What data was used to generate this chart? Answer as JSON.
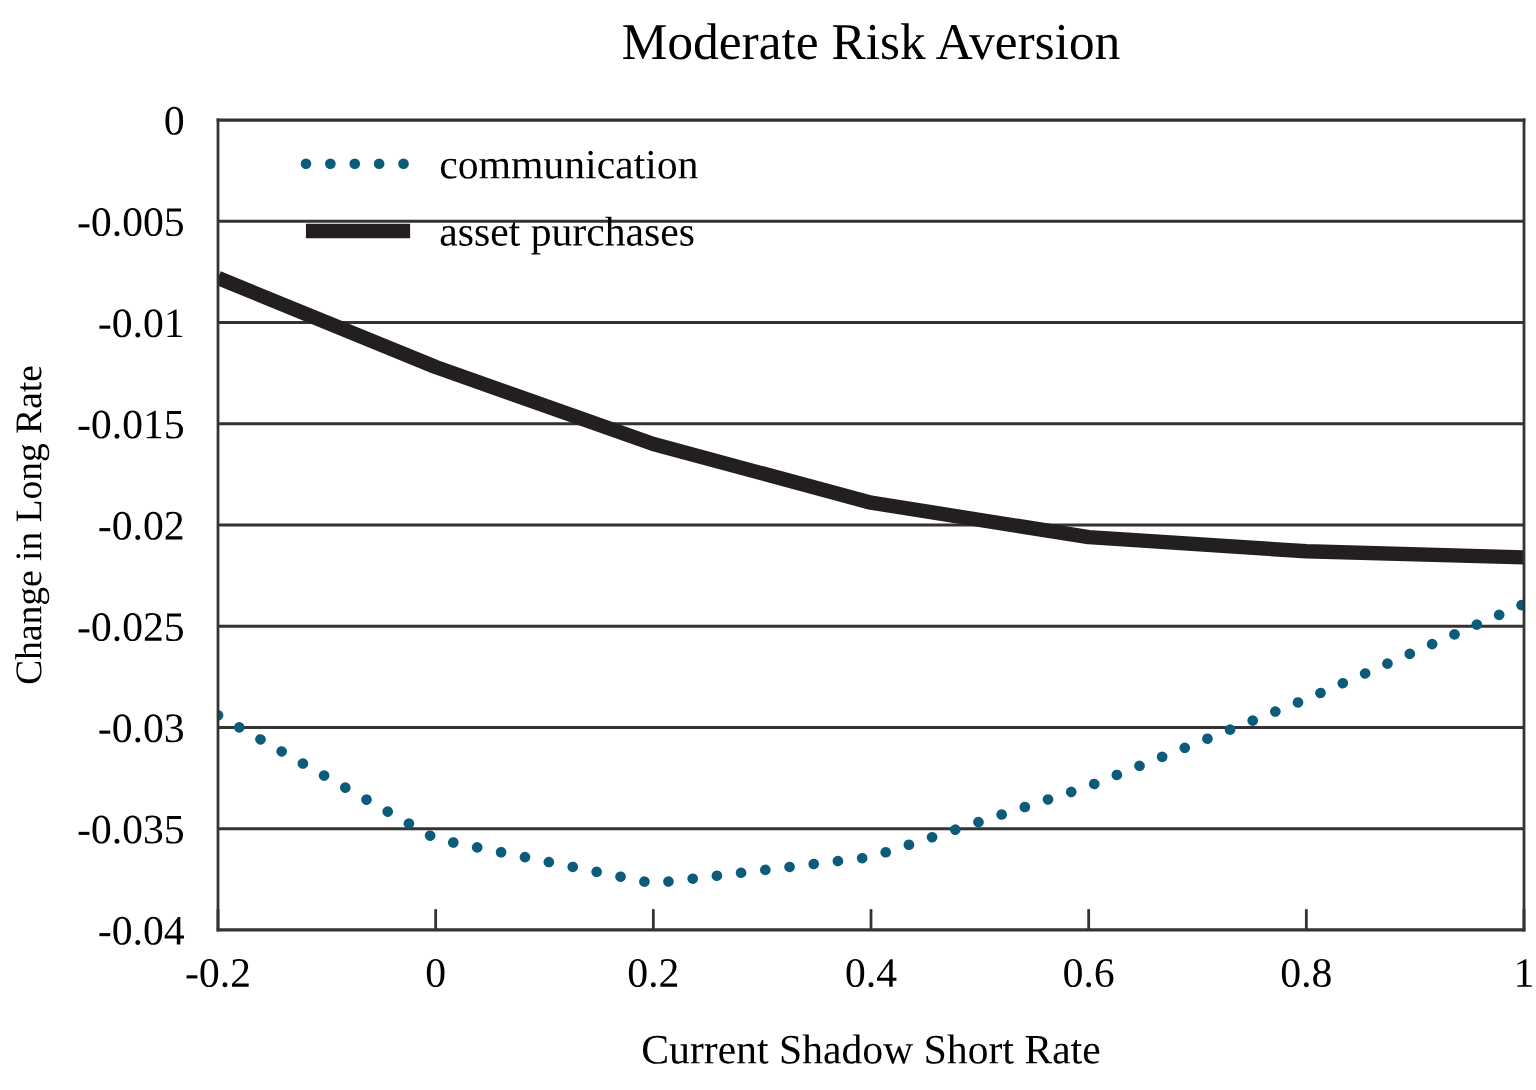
{
  "chart_data": {
    "type": "line",
    "title": "Moderate Risk Aversion",
    "xlabel": "Current Shadow Short Rate",
    "ylabel": "Change in Long Rate",
    "x": [
      -0.2,
      0,
      0.2,
      0.4,
      0.6,
      0.8,
      1
    ],
    "series": [
      {
        "name": "communication",
        "color": "#0d5b7b",
        "line_style": "dotted",
        "values": [
          -0.0294,
          -0.0355,
          -0.0377,
          -0.0364,
          -0.0329,
          -0.0286,
          -0.0239
        ]
      },
      {
        "name": "asset purchases",
        "color": "#231f20",
        "line_style": "solid",
        "values": [
          -0.0078,
          -0.0122,
          -0.016,
          -0.0189,
          -0.0206,
          -0.0213,
          -0.0216
        ]
      }
    ],
    "xlim": [
      -0.2,
      1
    ],
    "xticks": [
      -0.2,
      0,
      0.2,
      0.4,
      0.6,
      0.8,
      1
    ],
    "ylim": [
      -0.04,
      0
    ],
    "yticks": [
      0,
      -0.005,
      -0.01,
      -0.015,
      -0.02,
      -0.025,
      -0.03,
      -0.035,
      -0.04
    ],
    "grid": "y",
    "legend": "top left",
    "marker": "none"
  }
}
